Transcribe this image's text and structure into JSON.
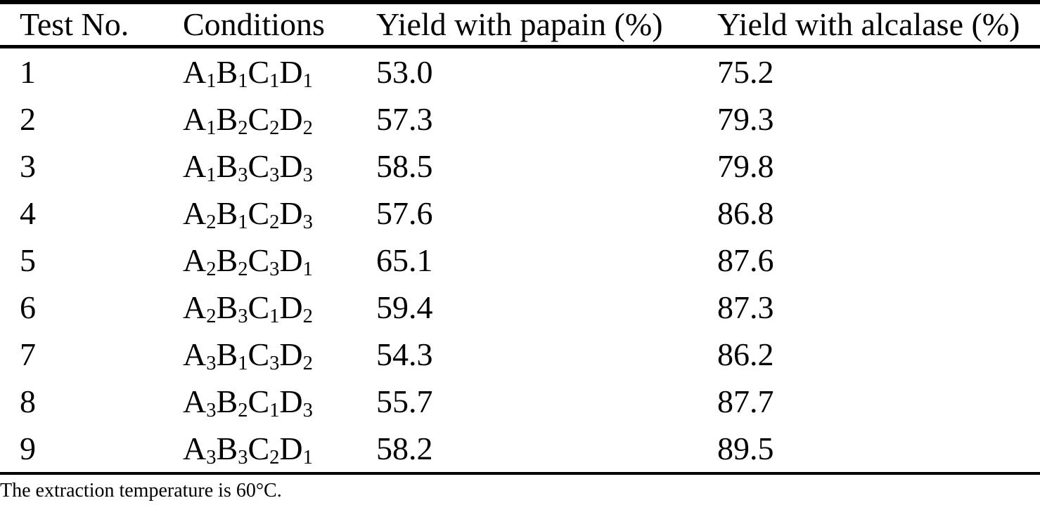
{
  "table": {
    "columns": [
      "Test No.",
      "Conditions",
      "Yield with papain (%)",
      "Yield with alcalase (%)"
    ],
    "rows": [
      {
        "test_no": "1",
        "conditions": "A1B1C1D1",
        "papain": "53.0",
        "alcalase": "75.2"
      },
      {
        "test_no": "2",
        "conditions": "A1B2C2D2",
        "papain": "57.3",
        "alcalase": "79.3"
      },
      {
        "test_no": "3",
        "conditions": "A1B3C3D3",
        "papain": "58.5",
        "alcalase": "79.8"
      },
      {
        "test_no": "4",
        "conditions": "A2B1C2D3",
        "papain": "57.6",
        "alcalase": "86.8"
      },
      {
        "test_no": "5",
        "conditions": "A2B2C3D1",
        "papain": "65.1",
        "alcalase": "87.6"
      },
      {
        "test_no": "6",
        "conditions": "A2B3C1D2",
        "papain": "59.4",
        "alcalase": "87.3"
      },
      {
        "test_no": "7",
        "conditions": "A3B1C3D2",
        "papain": "54.3",
        "alcalase": "86.2"
      },
      {
        "test_no": "8",
        "conditions": "A3B2C1D3",
        "papain": "55.7",
        "alcalase": "87.7"
      },
      {
        "test_no": "9",
        "conditions": "A3B3C2D1",
        "papain": "58.2",
        "alcalase": "89.5"
      }
    ]
  },
  "footnote": "The extraction temperature is 60°C.",
  "colors": {
    "text": "#000000",
    "background": "#ffffff",
    "rule": "#000000"
  },
  "chart_data": {
    "type": "table",
    "title": "",
    "columns": [
      "Test No.",
      "Conditions",
      "Yield with papain (%)",
      "Yield with alcalase (%)"
    ],
    "rows": [
      [
        "1",
        "A1B1C1D1",
        53.0,
        75.2
      ],
      [
        "2",
        "A1B2C2D2",
        57.3,
        79.3
      ],
      [
        "3",
        "A1B3C3D3",
        58.5,
        79.8
      ],
      [
        "4",
        "A2B1C2D3",
        57.6,
        86.8
      ],
      [
        "5",
        "A2B2C3D1",
        65.1,
        87.6
      ],
      [
        "6",
        "A2B3C1D2",
        59.4,
        87.3
      ],
      [
        "7",
        "A3B1C3D2",
        54.3,
        86.2
      ],
      [
        "8",
        "A3B2C1D3",
        55.7,
        87.7
      ],
      [
        "9",
        "A3B3C2D1",
        58.2,
        89.5
      ]
    ],
    "annotations": [
      "The extraction temperature is 60°C."
    ]
  }
}
